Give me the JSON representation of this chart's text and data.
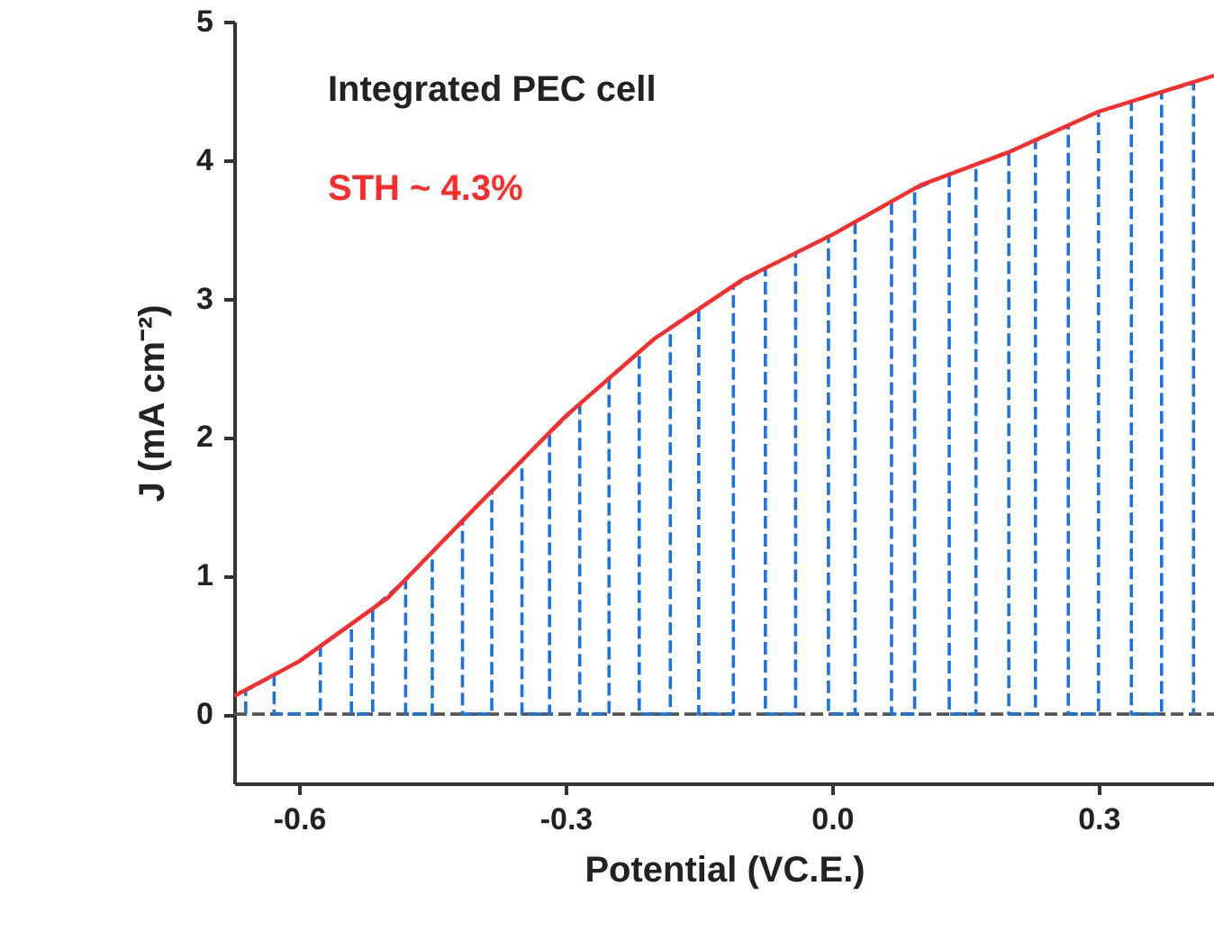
{
  "chart_data": {
    "type": "line",
    "xlabel": "Potential (VC.E.)",
    "ylabel": "J (mA cm⁻²)",
    "annotations": [
      "Integrated PEC cell",
      "STH ~ 4.3%"
    ],
    "xlim": [
      -0.673,
      0.43
    ],
    "xticks": [
      -0.6,
      -0.3,
      {
        "value": 0,
        "label": "0.0"
      },
      0.3
    ],
    "ylim": [
      -0.5,
      5
    ],
    "yticks": [
      0,
      1,
      2,
      3,
      4,
      5
    ],
    "grid": false,
    "marker": "none",
    "series": [
      {
        "type": "line",
        "color": "#555555",
        "line_style": "dashed",
        "x": [
          -0.673,
          0.43
        ],
        "values": [
          0,
          0
        ]
      },
      {
        "type": "line",
        "color": "#1a73e0",
        "line_style": "dashed",
        "x": [
          -0.66,
          -0.66,
          -0.628,
          -0.628,
          -0.576,
          -0.576,
          -0.541,
          -0.541,
          -0.517,
          -0.517,
          -0.48,
          -0.48,
          -0.45,
          -0.45,
          -0.416,
          -0.416,
          -0.383,
          -0.383,
          -0.349,
          -0.349,
          -0.318,
          -0.318,
          -0.284,
          -0.284,
          -0.251,
          -0.251,
          -0.217,
          -0.217,
          -0.182,
          -0.182,
          -0.15,
          -0.15,
          -0.111,
          -0.111,
          -0.075,
          -0.075,
          -0.041,
          -0.041,
          -0.004,
          -0.004,
          0.026,
          0.026,
          0.067,
          0.067,
          0.093,
          0.093,
          0.132,
          0.132,
          0.162,
          0.162,
          0.199,
          0.199,
          0.229,
          0.229,
          0.266,
          0.266,
          0.3,
          0.3,
          0.337,
          0.337,
          0.371,
          0.371,
          0.407,
          0.407
        ],
        "values": [
          0,
          0.17,
          0.28,
          0,
          0,
          0.49,
          0.65,
          0,
          0,
          0.76,
          0.97,
          0,
          0,
          1.17,
          1.39,
          0,
          0,
          1.61,
          1.83,
          0,
          0,
          2.03,
          2.24,
          0,
          0,
          2.42,
          2.61,
          0,
          0,
          2.79,
          2.93,
          0,
          0,
          3.09,
          3.22,
          0,
          0,
          3.33,
          3.45,
          0,
          0,
          3.55,
          3.7,
          0,
          0,
          3.79,
          3.9,
          0,
          0,
          3.97,
          4.06,
          0,
          0,
          4.14,
          4.25,
          0,
          0,
          4.35,
          4.42,
          0,
          0,
          4.49,
          4.56,
          0
        ]
      },
      {
        "type": "line",
        "color": "#ff2a2a",
        "line_style": "solid",
        "x": [
          -0.673,
          -0.6,
          -0.5,
          -0.4,
          -0.3,
          -0.2,
          -0.1,
          0,
          0.1,
          0.2,
          0.3,
          0.43
        ],
        "values": [
          0.13,
          0.38,
          0.84,
          1.5,
          2.15,
          2.71,
          3.14,
          3.46,
          3.82,
          4.06,
          4.35,
          4.61
        ]
      }
    ]
  }
}
